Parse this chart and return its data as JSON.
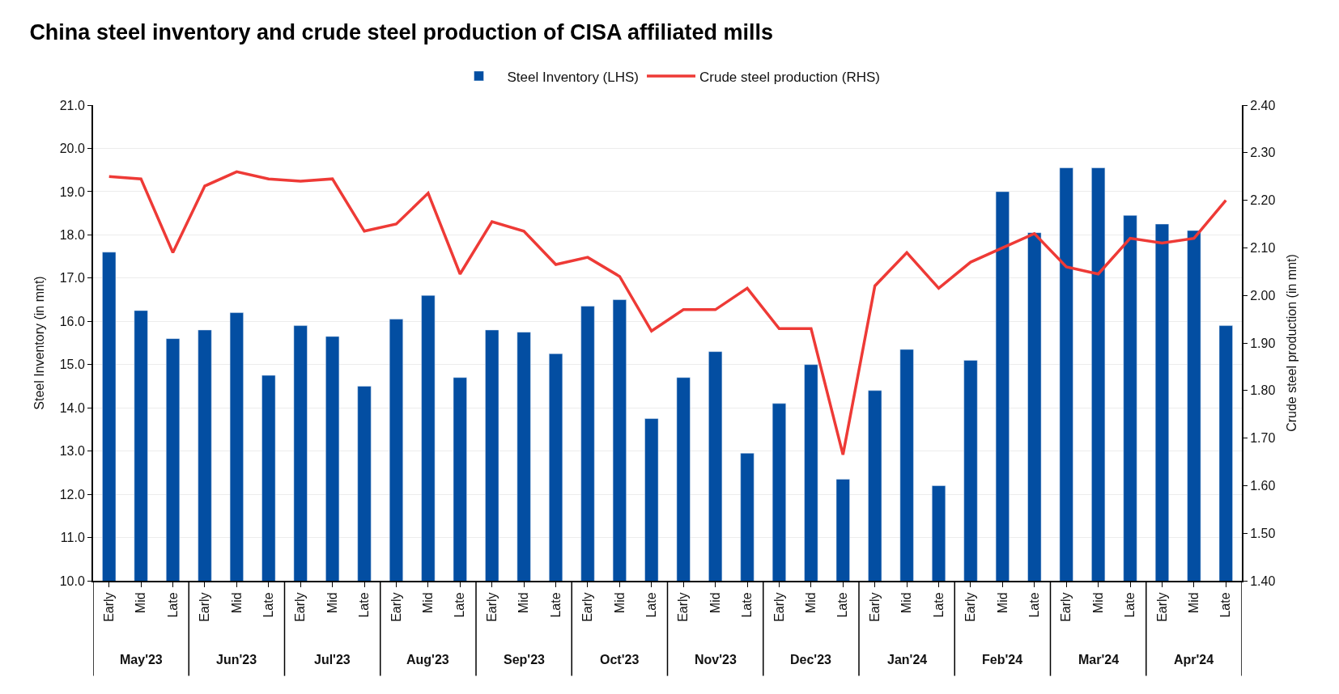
{
  "chart_data": {
    "type": "bar",
    "title": "China steel inventory and crude steel production of CISA affiliated mills",
    "categories": [
      "Early",
      "Mid",
      "Late",
      "Early",
      "Mid",
      "Late",
      "Early",
      "Mid",
      "Late",
      "Early",
      "Mid",
      "Late",
      "Early",
      "Mid",
      "Late",
      "Early",
      "Mid",
      "Late",
      "Early",
      "Mid",
      "Late",
      "Early",
      "Mid",
      "Late",
      "Early",
      "Mid",
      "Late",
      "Early",
      "Mid",
      "Late",
      "Early",
      "Mid",
      "Late",
      "Early",
      "Mid",
      "Late"
    ],
    "annotations": [
      "May'23",
      "Jun'23",
      "Jul'23",
      "Aug'23",
      "Sep'23",
      "Oct'23",
      "Nov'23",
      "Dec'23",
      "Jan'24",
      "Feb'24",
      "Mar'24",
      "Apr'24"
    ],
    "series": [
      {
        "name": "Steel Inventory (LHS)",
        "color": "#034ea2",
        "values": [
          17.6,
          16.25,
          15.6,
          15.8,
          16.2,
          14.75,
          15.9,
          15.65,
          14.5,
          16.05,
          16.6,
          14.7,
          15.8,
          15.75,
          15.25,
          16.35,
          16.5,
          13.75,
          14.7,
          15.3,
          12.95,
          14.1,
          15.0,
          12.35,
          14.4,
          15.35,
          12.2,
          15.1,
          19.0,
          18.05,
          19.55,
          19.55,
          18.45,
          18.25,
          18.1,
          15.9
        ]
      },
      {
        "name": "Crude steel production (RHS)",
        "type": "line",
        "axis": "y2",
        "color": "#ee3a36",
        "values": [
          2.25,
          2.245,
          2.09,
          2.23,
          2.26,
          2.245,
          2.24,
          2.245,
          2.135,
          2.15,
          2.215,
          2.045,
          2.155,
          2.135,
          2.065,
          2.08,
          2.04,
          1.925,
          1.97,
          1.97,
          2.015,
          1.93,
          1.93,
          1.665,
          2.02,
          2.09,
          2.015,
          2.07,
          2.1,
          2.13,
          2.06,
          2.045,
          2.12,
          2.11,
          2.12,
          2.2
        ]
      }
    ],
    "ylabel": "Steel Inventory (in mnt)",
    "y2label": "Crude steel production (in mnt)",
    "ylim": [
      10,
      21
    ],
    "yticks": [
      {
        "value": 10,
        "label": "10.0"
      },
      {
        "value": 11,
        "label": "11.0"
      },
      {
        "value": 12,
        "label": "12.0"
      },
      {
        "value": 13,
        "label": "13.0"
      },
      {
        "value": 14,
        "label": "14.0"
      },
      {
        "value": 15,
        "label": "15.0"
      },
      {
        "value": 16,
        "label": "16.0"
      },
      {
        "value": 17,
        "label": "17.0"
      },
      {
        "value": 18,
        "label": "18.0"
      },
      {
        "value": 19,
        "label": "19.0"
      },
      {
        "value": 20,
        "label": "20.0"
      },
      {
        "value": 21,
        "label": "21.0"
      }
    ],
    "y2lim": [
      1.4,
      2.4
    ],
    "y2ticks": [
      {
        "value": 1.4,
        "label": "1.40"
      },
      {
        "value": 1.5,
        "label": "1.50"
      },
      {
        "value": 1.6,
        "label": "1.60"
      },
      {
        "value": 1.7,
        "label": "1.70"
      },
      {
        "value": 1.8,
        "label": "1.80"
      },
      {
        "value": 1.9,
        "label": "1.90"
      },
      {
        "value": 2.0,
        "label": "2.00"
      },
      {
        "value": 2.1,
        "label": "2.10"
      },
      {
        "value": 2.2,
        "label": "2.20"
      },
      {
        "value": 2.3,
        "label": "2.30"
      },
      {
        "value": 2.4,
        "label": "2.40"
      }
    ],
    "grid": "y",
    "legend": "top",
    "marker": "none",
    "line_style": "solid"
  }
}
